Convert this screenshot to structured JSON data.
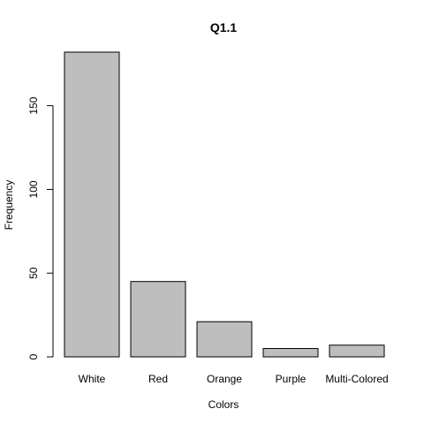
{
  "chart_data": {
    "type": "bar",
    "title": "Q1.1",
    "xlabel": "Colors",
    "ylabel": "Frequency",
    "categories": [
      "White",
      "Red",
      "Orange",
      "Purple",
      "Multi-Colored"
    ],
    "values": [
      182,
      45,
      21,
      5,
      7
    ],
    "ylim": [
      0,
      182
    ],
    "yticks": [
      0,
      50,
      100,
      150
    ],
    "grid": false,
    "colors": {
      "bar_fill": "#bebebe",
      "bar_stroke": "#000000"
    }
  }
}
